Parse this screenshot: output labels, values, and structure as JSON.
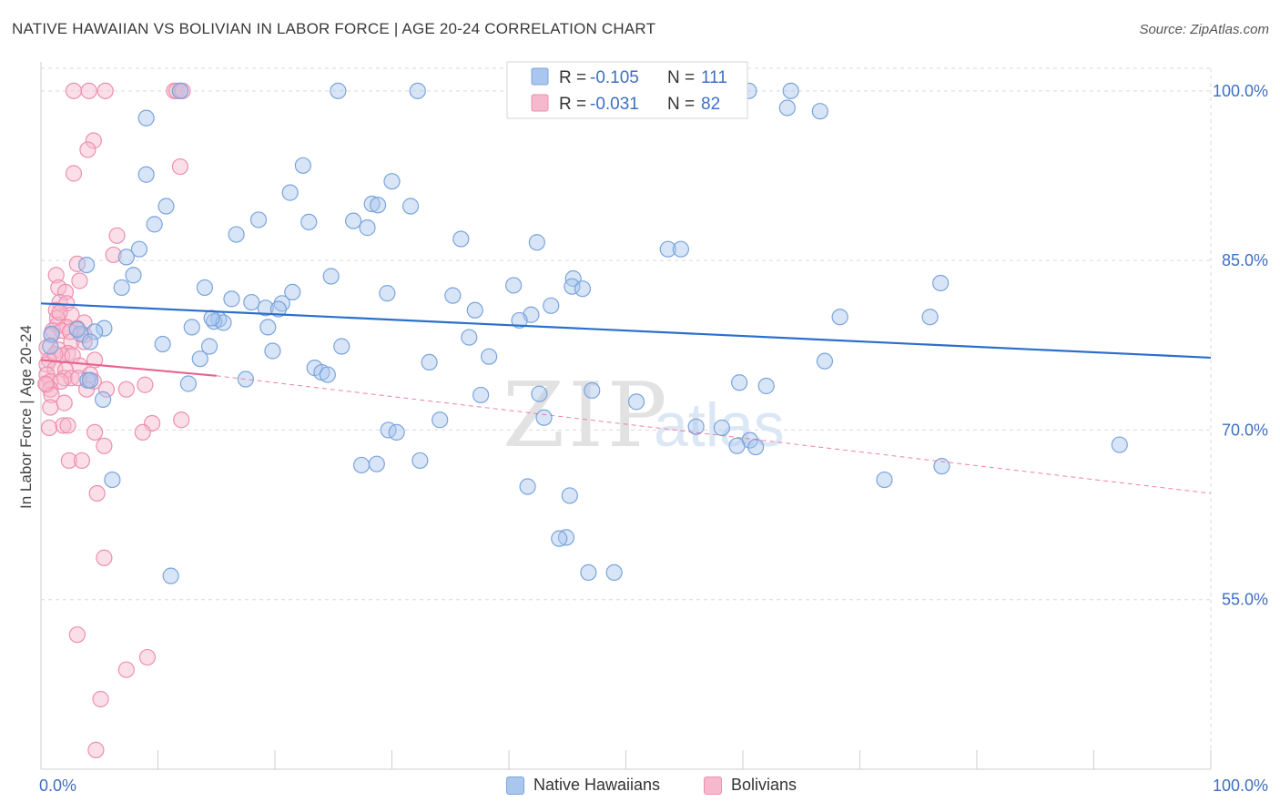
{
  "header": {
    "title": "NATIVE HAWAIIAN VS BOLIVIAN IN LABOR FORCE | AGE 20-24 CORRELATION CHART",
    "source": "Source: ZipAtlas.com"
  },
  "watermark": {
    "zip": "ZIP",
    "atlas": "atlas"
  },
  "colors": {
    "blue_fill": "#a9c6ee",
    "blue_stroke": "#7aa4dc",
    "blue_line": "#2a6fcc",
    "pink_fill": "#f6b8cc",
    "pink_stroke": "#ee8fae",
    "pink_line": "#e8648f",
    "grid": "#d9d9d9",
    "axis_label": "#3d6fc4"
  },
  "chart_data": {
    "type": "scatter",
    "title": "NATIVE HAWAIIAN VS BOLIVIAN IN LABOR FORCE | AGE 20-24 CORRELATION CHART",
    "xlabel": "",
    "ylabel": "In Labor Force | Age 20-24",
    "xlim": [
      0,
      100
    ],
    "ylim": [
      40,
      102
    ],
    "x_tick_labels": [
      "0.0%",
      "100.0%"
    ],
    "y_ticks": [
      {
        "value": 100,
        "label": "100.0%"
      },
      {
        "value": 85,
        "label": "85.0%"
      },
      {
        "value": 70,
        "label": "70.0%"
      },
      {
        "value": 55,
        "label": "55.0%"
      }
    ],
    "grid": true,
    "legend": {
      "position": "top-center",
      "entries": [
        {
          "r_label": "R =",
          "r_value": "-0.105",
          "n_label": "N =",
          "n_value": "111"
        },
        {
          "r_label": "R =",
          "r_value": "-0.031",
          "n_label": "N =",
          "n_value": "82"
        }
      ]
    },
    "bottom_legend": [
      "Native Hawaiians",
      "Bolivians"
    ],
    "series": [
      {
        "name": "Native Hawaiians",
        "r": -0.105,
        "n": 111,
        "trend": {
          "x0": 0,
          "y0": 81.2,
          "x1": 100,
          "y1": 76.4,
          "style": "solid"
        },
        "points": [
          [
            11.9,
            100
          ],
          [
            25.4,
            100
          ],
          [
            32.2,
            100
          ],
          [
            60.5,
            100
          ],
          [
            64.1,
            100
          ],
          [
            63.8,
            98.5
          ],
          [
            66.6,
            98.2
          ],
          [
            9.0,
            97.6
          ],
          [
            22.4,
            93.4
          ],
          [
            9.0,
            92.6
          ],
          [
            30.0,
            92.0
          ],
          [
            21.3,
            91.0
          ],
          [
            28.3,
            90.0
          ],
          [
            28.8,
            89.9
          ],
          [
            10.7,
            89.8
          ],
          [
            31.6,
            89.8
          ],
          [
            9.7,
            88.2
          ],
          [
            18.6,
            88.6
          ],
          [
            22.9,
            88.4
          ],
          [
            26.7,
            88.5
          ],
          [
            27.9,
            87.9
          ],
          [
            16.7,
            87.3
          ],
          [
            35.9,
            86.9
          ],
          [
            42.4,
            86.6
          ],
          [
            53.6,
            86.0
          ],
          [
            54.7,
            86.0
          ],
          [
            8.4,
            86.0
          ],
          [
            7.3,
            85.3
          ],
          [
            3.9,
            84.6
          ],
          [
            7.9,
            83.7
          ],
          [
            24.8,
            83.6
          ],
          [
            45.5,
            83.4
          ],
          [
            76.9,
            83.0
          ],
          [
            40.4,
            82.8
          ],
          [
            45.4,
            82.7
          ],
          [
            6.9,
            82.6
          ],
          [
            14.0,
            82.6
          ],
          [
            46.3,
            82.5
          ],
          [
            21.5,
            82.2
          ],
          [
            29.6,
            82.1
          ],
          [
            35.2,
            81.9
          ],
          [
            16.3,
            81.6
          ],
          [
            18.0,
            81.3
          ],
          [
            20.6,
            81.2
          ],
          [
            19.2,
            80.8
          ],
          [
            43.6,
            81.0
          ],
          [
            20.3,
            80.7
          ],
          [
            37.1,
            80.6
          ],
          [
            41.9,
            80.2
          ],
          [
            68.3,
            80.0
          ],
          [
            76.0,
            80.0
          ],
          [
            40.9,
            79.7
          ],
          [
            15.2,
            79.8
          ],
          [
            14.8,
            79.6
          ],
          [
            15.6,
            79.5
          ],
          [
            19.4,
            79.1
          ],
          [
            12.9,
            79.1
          ],
          [
            5.4,
            79.0
          ],
          [
            4.6,
            78.7
          ],
          [
            3.4,
            78.5
          ],
          [
            36.6,
            78.2
          ],
          [
            0.9,
            78.5
          ],
          [
            4.2,
            77.8
          ],
          [
            10.4,
            77.6
          ],
          [
            14.4,
            77.4
          ],
          [
            25.7,
            77.4
          ],
          [
            19.8,
            77.0
          ],
          [
            38.3,
            76.5
          ],
          [
            13.6,
            76.3
          ],
          [
            67.0,
            76.1
          ],
          [
            33.2,
            76.0
          ],
          [
            23.4,
            75.5
          ],
          [
            24.0,
            75.1
          ],
          [
            24.5,
            74.9
          ],
          [
            17.5,
            74.5
          ],
          [
            4.0,
            74.4
          ],
          [
            12.6,
            74.1
          ],
          [
            59.7,
            74.2
          ],
          [
            62.0,
            73.9
          ],
          [
            47.1,
            73.5
          ],
          [
            42.6,
            73.2
          ],
          [
            37.6,
            73.1
          ],
          [
            50.9,
            72.5
          ],
          [
            5.3,
            72.7
          ],
          [
            34.1,
            70.9
          ],
          [
            43.0,
            71.1
          ],
          [
            56.0,
            70.3
          ],
          [
            58.2,
            70.2
          ],
          [
            29.7,
            70.0
          ],
          [
            30.4,
            69.8
          ],
          [
            60.6,
            69.1
          ],
          [
            59.5,
            68.6
          ],
          [
            61.1,
            68.5
          ],
          [
            92.2,
            68.7
          ],
          [
            28.7,
            67.0
          ],
          [
            27.4,
            66.9
          ],
          [
            32.4,
            67.3
          ],
          [
            77.0,
            66.8
          ],
          [
            6.1,
            65.6
          ],
          [
            72.1,
            65.6
          ],
          [
            41.6,
            65.0
          ],
          [
            45.2,
            64.2
          ],
          [
            44.9,
            60.5
          ],
          [
            44.3,
            60.4
          ],
          [
            46.8,
            57.4
          ],
          [
            49.0,
            57.4
          ],
          [
            11.1,
            57.1
          ],
          [
            4.2,
            74.4
          ],
          [
            0.8,
            77.4
          ],
          [
            14.6,
            79.9
          ],
          [
            3.1,
            78.9
          ]
        ]
      },
      {
        "name": "Bolivians",
        "r": -0.031,
        "n": 82,
        "trend": {
          "x0": 0,
          "y0": 76.2,
          "x1": 15,
          "y1": 74.8,
          "style": "solid",
          "dash_x1": 100,
          "dash_y1": 64.4
        },
        "points": [
          [
            2.8,
            100
          ],
          [
            4.1,
            100
          ],
          [
            5.5,
            100
          ],
          [
            11.4,
            100
          ],
          [
            11.6,
            100
          ],
          [
            11.9,
            100
          ],
          [
            12.1,
            100
          ],
          [
            4.5,
            95.6
          ],
          [
            4.0,
            94.8
          ],
          [
            11.9,
            93.3
          ],
          [
            2.8,
            92.7
          ],
          [
            6.5,
            87.2
          ],
          [
            6.2,
            85.5
          ],
          [
            3.1,
            84.7
          ],
          [
            1.3,
            83.7
          ],
          [
            3.3,
            83.2
          ],
          [
            1.5,
            82.6
          ],
          [
            2.1,
            82.2
          ],
          [
            1.6,
            81.3
          ],
          [
            2.2,
            81.2
          ],
          [
            1.3,
            80.6
          ],
          [
            2.6,
            80.2
          ],
          [
            1.4,
            79.9
          ],
          [
            3.7,
            79.5
          ],
          [
            1.4,
            79.3
          ],
          [
            2.2,
            79.1
          ],
          [
            3.1,
            79.0
          ],
          [
            1.0,
            78.8
          ],
          [
            1.8,
            78.8
          ],
          [
            0.9,
            78.4
          ],
          [
            3.7,
            78.4
          ],
          [
            2.6,
            77.8
          ],
          [
            3.7,
            77.8
          ],
          [
            0.5,
            77.3
          ],
          [
            1.5,
            77.1
          ],
          [
            2.3,
            76.8
          ],
          [
            1.8,
            76.6
          ],
          [
            2.7,
            76.6
          ],
          [
            0.7,
            76.2
          ],
          [
            4.6,
            76.2
          ],
          [
            0.5,
            75.8
          ],
          [
            3.3,
            75.7
          ],
          [
            1.2,
            75.4
          ],
          [
            2.1,
            75.3
          ],
          [
            0.5,
            74.9
          ],
          [
            4.2,
            74.9
          ],
          [
            2.0,
            74.6
          ],
          [
            2.6,
            74.6
          ],
          [
            3.2,
            74.6
          ],
          [
            0.8,
            74.3
          ],
          [
            1.7,
            74.3
          ],
          [
            4.5,
            74.3
          ],
          [
            0.5,
            74.0
          ],
          [
            0.8,
            73.6
          ],
          [
            3.9,
            73.6
          ],
          [
            5.6,
            73.6
          ],
          [
            7.3,
            73.6
          ],
          [
            0.9,
            73.1
          ],
          [
            2.0,
            72.4
          ],
          [
            0.8,
            72.0
          ],
          [
            12.0,
            70.9
          ],
          [
            9.5,
            70.6
          ],
          [
            1.9,
            70.4
          ],
          [
            2.3,
            70.4
          ],
          [
            0.7,
            70.2
          ],
          [
            4.6,
            69.8
          ],
          [
            8.7,
            69.8
          ],
          [
            5.4,
            68.6
          ],
          [
            2.4,
            67.3
          ],
          [
            3.5,
            67.3
          ],
          [
            4.8,
            64.4
          ],
          [
            5.4,
            58.7
          ],
          [
            3.1,
            51.9
          ],
          [
            9.1,
            49.9
          ],
          [
            7.3,
            48.8
          ],
          [
            5.1,
            46.2
          ],
          [
            4.7,
            41.7
          ],
          [
            8.9,
            74.0
          ],
          [
            1.2,
            76.7
          ],
          [
            0.4,
            74.1
          ],
          [
            2.5,
            78.7
          ],
          [
            1.6,
            80.4
          ]
        ]
      }
    ]
  }
}
